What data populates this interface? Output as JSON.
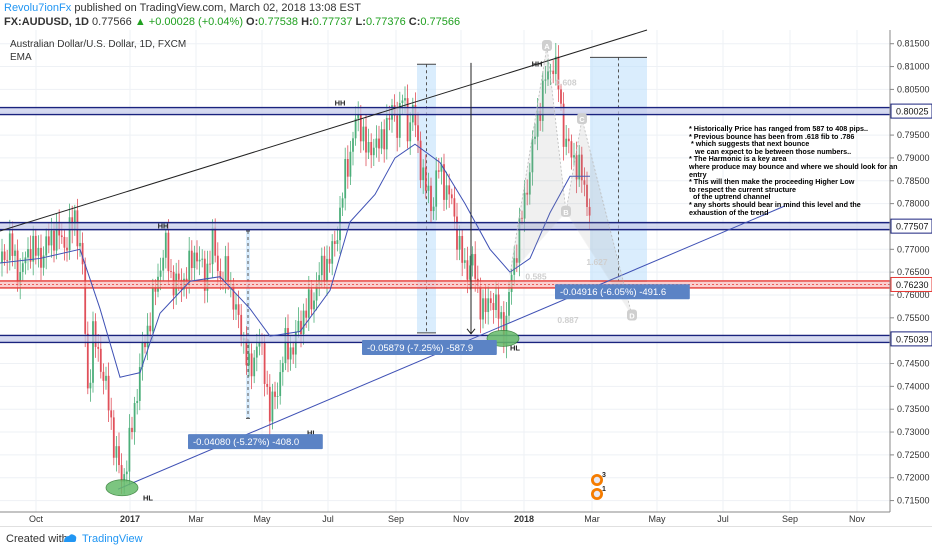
{
  "header": {
    "publisher": "Revolu7ionFx",
    "published_text": "published on TradingView.com, March 02, 2018 13:08 EST",
    "symbol_line": "FX:AUDUSD, 1D",
    "last": "0.77566",
    "change": "+0.00028 (+0.04%)",
    "o_label": "O:",
    "o_value": "0.77538",
    "h_label": "H:",
    "h_value": "0.77737",
    "l_label": "L:",
    "l_value": "0.77376",
    "c_label": "C:",
    "c_value": "0.77566"
  },
  "footer": {
    "created_with": "Created with",
    "brand": "TradingView"
  },
  "chart_data": {
    "type": "candlestick",
    "title": "Australian Dollar/U.S. Dollar, 1D, FXCM",
    "subtitle": "EMA",
    "x_ticks": [
      "Oct",
      "2017",
      "Mar",
      "May",
      "Jul",
      "Sep",
      "Nov",
      "2018",
      "Mar",
      "May",
      "Jul",
      "Sep",
      "Nov"
    ],
    "y_ticks": [
      "0.81500",
      "0.81000",
      "0.80500",
      "0.80000",
      "0.79500",
      "0.79000",
      "0.78500",
      "0.78000",
      "0.77500",
      "0.77000",
      "0.76500",
      "0.76000",
      "0.75500",
      "0.75000",
      "0.74500",
      "0.74000",
      "0.73500",
      "0.73000",
      "0.72500",
      "0.72000",
      "0.71500"
    ],
    "ylim": [
      0.7125,
      0.818
    ],
    "horizontal_levels": [
      {
        "label": "0.80025",
        "value": 0.80025
      },
      {
        "label": "0.77507",
        "value": 0.77507
      },
      {
        "label": "0.76230",
        "value": 0.7623
      },
      {
        "label": "0.75039",
        "value": 0.75039
      }
    ],
    "price_path": [
      [
        0,
        0.767
      ],
      [
        10,
        0.771
      ],
      [
        20,
        0.764
      ],
      [
        30,
        0.771
      ],
      [
        40,
        0.768
      ],
      [
        55,
        0.774
      ],
      [
        65,
        0.771
      ],
      [
        75,
        0.777
      ],
      [
        82,
        0.768
      ],
      [
        88,
        0.738
      ],
      [
        93,
        0.751
      ],
      [
        100,
        0.746
      ],
      [
        108,
        0.737
      ],
      [
        115,
        0.726
      ],
      [
        122,
        0.719
      ],
      [
        128,
        0.725
      ],
      [
        135,
        0.736
      ],
      [
        142,
        0.747
      ],
      [
        150,
        0.755
      ],
      [
        158,
        0.764
      ],
      [
        165,
        0.771
      ],
      [
        172,
        0.763
      ],
      [
        180,
        0.762
      ],
      [
        188,
        0.765
      ],
      [
        196,
        0.77
      ],
      [
        205,
        0.763
      ],
      [
        212,
        0.772
      ],
      [
        220,
        0.764
      ],
      [
        228,
        0.765
      ],
      [
        236,
        0.756
      ],
      [
        243,
        0.751
      ],
      [
        250,
        0.742
      ],
      [
        258,
        0.751
      ],
      [
        265,
        0.743
      ],
      [
        270,
        0.734
      ],
      [
        278,
        0.74
      ],
      [
        285,
        0.749
      ],
      [
        293,
        0.748
      ],
      [
        300,
        0.754
      ],
      [
        307,
        0.757
      ],
      [
        313,
        0.759
      ],
      [
        320,
        0.765
      ],
      [
        327,
        0.767
      ],
      [
        334,
        0.77
      ],
      [
        340,
        0.778
      ],
      [
        345,
        0.786
      ],
      [
        350,
        0.791
      ],
      [
        356,
        0.798
      ],
      [
        362,
        0.797
      ],
      [
        368,
        0.79
      ],
      [
        374,
        0.794
      ],
      [
        380,
        0.792
      ],
      [
        387,
        0.798
      ],
      [
        393,
        0.8
      ],
      [
        398,
        0.797
      ],
      [
        402,
        0.804
      ],
      [
        408,
        0.796
      ],
      [
        413,
        0.801
      ],
      [
        418,
        0.792
      ],
      [
        425,
        0.784
      ],
      [
        432,
        0.779
      ],
      [
        438,
        0.788
      ],
      [
        445,
        0.784
      ],
      [
        452,
        0.78
      ],
      [
        458,
        0.772
      ],
      [
        465,
        0.765
      ],
      [
        472,
        0.768
      ],
      [
        478,
        0.76
      ],
      [
        485,
        0.756
      ],
      [
        492,
        0.76
      ],
      [
        498,
        0.756
      ],
      [
        505,
        0.752
      ],
      [
        512,
        0.765
      ],
      [
        518,
        0.772
      ],
      [
        524,
        0.78
      ],
      [
        530,
        0.788
      ],
      [
        536,
        0.797
      ],
      [
        542,
        0.804
      ],
      [
        547,
        0.808
      ],
      [
        553,
        0.811
      ],
      [
        558,
        0.807
      ],
      [
        563,
        0.796
      ],
      [
        568,
        0.792
      ],
      [
        574,
        0.79
      ],
      [
        580,
        0.787
      ],
      [
        585,
        0.783
      ],
      [
        590,
        0.778
      ]
    ],
    "ema_path": [
      [
        0,
        0.767
      ],
      [
        40,
        0.768
      ],
      [
        80,
        0.77
      ],
      [
        100,
        0.757
      ],
      [
        120,
        0.742
      ],
      [
        140,
        0.743
      ],
      [
        160,
        0.756
      ],
      [
        190,
        0.763
      ],
      [
        220,
        0.764
      ],
      [
        250,
        0.757
      ],
      [
        270,
        0.751
      ],
      [
        300,
        0.752
      ],
      [
        330,
        0.761
      ],
      [
        350,
        0.776
      ],
      [
        375,
        0.782
      ],
      [
        395,
        0.79
      ],
      [
        415,
        0.793
      ],
      [
        440,
        0.789
      ],
      [
        465,
        0.78
      ],
      [
        490,
        0.77
      ],
      [
        510,
        0.765
      ],
      [
        530,
        0.768
      ],
      [
        550,
        0.778
      ],
      [
        570,
        0.786
      ],
      [
        590,
        0.786
      ]
    ],
    "channel_upper": [
      [
        0,
        0.774
      ],
      [
        647,
        0.818
      ]
    ],
    "channel_lower": [
      [
        118,
        0.7175
      ],
      [
        785,
        0.7795
      ]
    ],
    "annotations": [
      {
        "text": "HH",
        "x": 340,
        "value": 0.8015
      },
      {
        "text": "HH",
        "x": 163,
        "value": 0.7745
      },
      {
        "text": "HH",
        "x": 537,
        "value": 0.81
      },
      {
        "text": "HL",
        "x": 148,
        "value": 0.715
      },
      {
        "text": "HL",
        "x": 312,
        "value": 0.7292
      },
      {
        "text": "HL",
        "x": 515,
        "value": 0.7478
      }
    ],
    "measure_boxes": [
      {
        "label": "-0.05879 (-7.25%) -587.9",
        "x1": 417,
        "x2": 436,
        "top": 0.8105,
        "bottom": 0.7517
      },
      {
        "label": "-0.04916 (-6.05%) -491.6",
        "x1": 590,
        "x2": 647,
        "top": 0.812,
        "bottom": 0.763
      },
      {
        "label": "-0.04080 (-5.27%) -408.0",
        "x1": 246,
        "x2": 250,
        "top": 0.774,
        "bottom": 0.733
      }
    ],
    "harmonic_points": [
      {
        "label": "A",
        "x": 547,
        "value": 0.8145
      },
      {
        "label": "B",
        "x": 566,
        "value": 0.7782
      },
      {
        "label": "C",
        "x": 582,
        "value": 0.7985
      },
      {
        "label": "D",
        "x": 632,
        "value": 0.7555
      },
      {
        "label": "0.608",
        "x": 566,
        "value": 0.8065
      },
      {
        "label": "0.585",
        "x": 536,
        "value": 0.764
      },
      {
        "label": "1.627",
        "x": 597,
        "value": 0.7672
      },
      {
        "label": "0.887",
        "x": 568,
        "value": 0.7545
      }
    ],
    "notes": [
      "* Historically Price has ranged from 587 to 408 pips..",
      "* Previous bounce has been from .618 fib to .786",
      " * which suggests that next bounce",
      "   we can expect to be between those numbers..",
      "* The Harmonic is a key area",
      "where produce may bounce and where we should look for an",
      "entry",
      "* This will then make the proceeding Higher Low",
      "to respect the current structure",
      "  of the uptrend channel",
      "* any shorts should bear in mind this level and the",
      "exhaustion of the trend"
    ],
    "event_markers": [
      "3",
      "1"
    ]
  }
}
